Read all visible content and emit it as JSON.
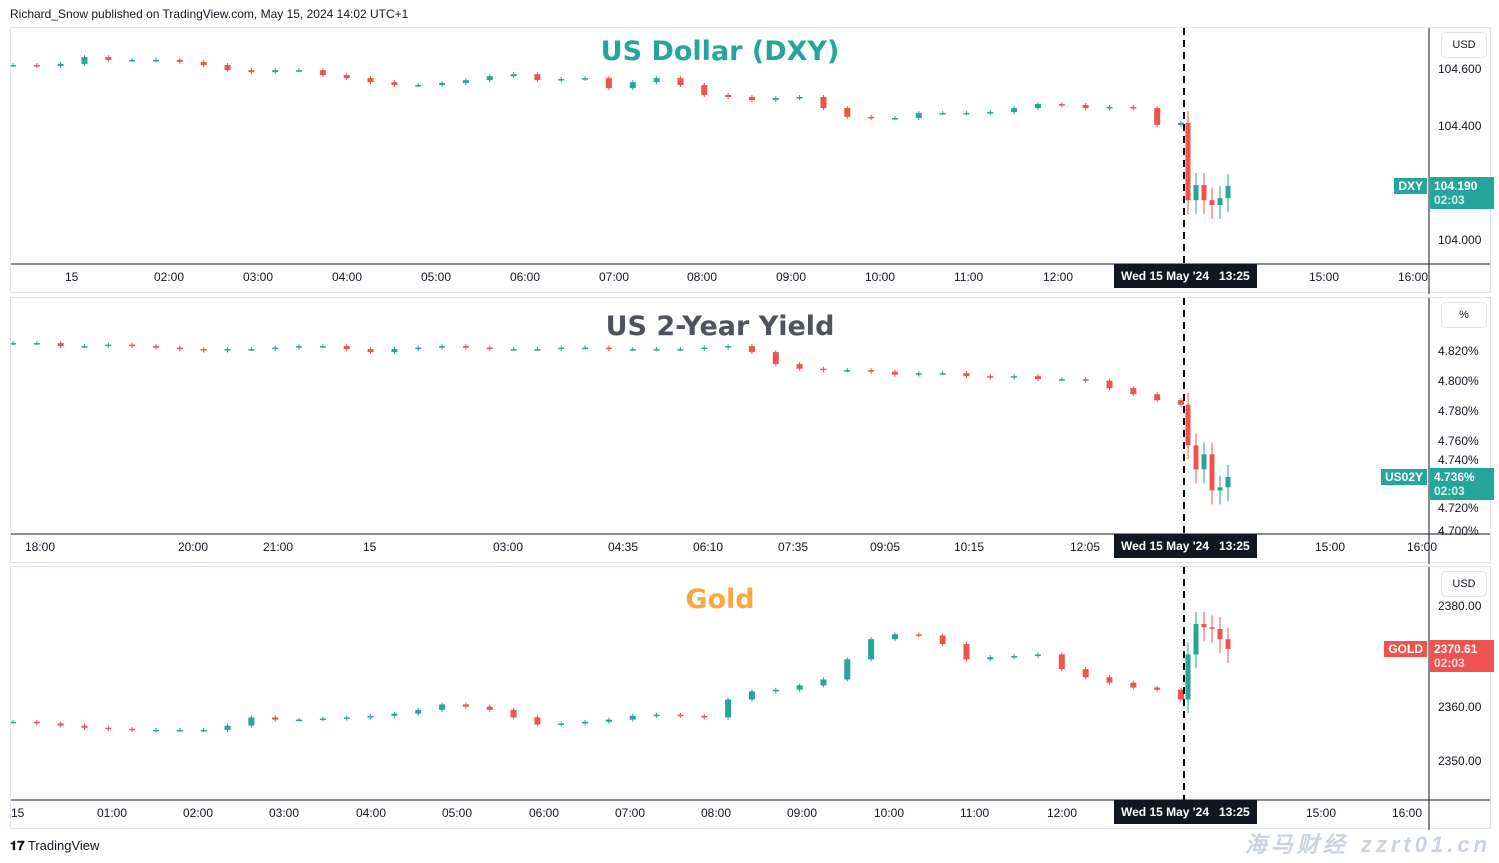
{
  "header": {
    "published": "Richard_Snow published on TradingView.com, May 15, 2024 14:02 UTC+1"
  },
  "footer": {
    "brand": "TradingView"
  },
  "watermark": {
    "line1": "海马财经",
    "line2": "zzrt01.cn"
  },
  "colors": {
    "up": "#26a69a",
    "down": "#ef5350",
    "dxy_title": "#26a69a",
    "yield_title": "#50535e",
    "gold_title": "#f7a93b"
  },
  "chart_data": [
    {
      "type": "candlestick",
      "title": "US Dollar (DXY)",
      "unit": "USD",
      "symbol": "DXY",
      "last_price": "104.190",
      "countdown": "02:03",
      "ylim": [
        103.916,
        104.744
      ],
      "yticks": [
        "104.600",
        "104.400",
        "104.000"
      ],
      "ytick_values": [
        104.6,
        104.4,
        104.0
      ],
      "xticks": [
        "15",
        "02:00",
        "03:00",
        "04:00",
        "05:00",
        "06:00",
        "07:00",
        "08:00",
        "09:00",
        "10:00",
        "11:00",
        "12:00",
        "15:00",
        "16:00"
      ],
      "crosshair_label": "Wed 15 May '24   13:25",
      "closes_before_marker": [
        104.614,
        104.611,
        104.618,
        104.642,
        104.632,
        104.632,
        104.632,
        104.625,
        104.614,
        104.596,
        104.589,
        104.596,
        104.596,
        104.579,
        104.568,
        104.554,
        104.544,
        104.544,
        104.551,
        104.561,
        104.575,
        104.582,
        104.561,
        104.565,
        104.568,
        104.533,
        104.554,
        104.568,
        104.544,
        104.509,
        104.502,
        104.491,
        104.498,
        104.502,
        104.463,
        104.432,
        104.428,
        104.428,
        104.446,
        104.446,
        104.446,
        104.449,
        104.463,
        104.477,
        104.474,
        104.463,
        104.467,
        104.463,
        104.404,
        104.411
      ],
      "closes_after_marker": [
        104.14,
        104.193,
        104.14,
        104.123,
        104.147,
        104.19
      ]
    },
    {
      "type": "candlestick",
      "title": "US 2-Year Yield",
      "unit": "%",
      "symbol": "US02Y",
      "last_price": "4.736%",
      "countdown": "02:03",
      "ylim": [
        4.698,
        4.855
      ],
      "yticks": [
        "4.820%",
        "4.800%",
        "4.780%",
        "4.760%",
        "4.740%",
        "4.720%",
        "4.700%"
      ],
      "ytick_values": [
        4.82,
        4.8,
        4.78,
        4.76,
        4.74,
        4.72,
        4.7
      ],
      "xticks": [
        "18:00",
        "20:00",
        "21:00",
        "15",
        "03:00",
        "04:35",
        "06:10",
        "07:35",
        "09:05",
        "10:15",
        "12:05",
        "15:00",
        "16:00"
      ],
      "crosshair_label": "Wed 15 May '24   13:25",
      "closes_before_marker": [
        4.825,
        4.825,
        4.823,
        4.823,
        4.824,
        4.823,
        4.822,
        4.821,
        4.82,
        4.821,
        4.821,
        4.822,
        4.823,
        4.823,
        4.821,
        4.819,
        4.821,
        4.822,
        4.823,
        4.822,
        4.821,
        4.821,
        4.821,
        4.822,
        4.822,
        4.821,
        4.821,
        4.821,
        4.821,
        4.822,
        4.823,
        4.819,
        4.811,
        4.808,
        4.807,
        4.807,
        4.806,
        4.804,
        4.805,
        4.805,
        4.803,
        4.802,
        4.803,
        4.801,
        4.801,
        4.8,
        4.795,
        4.791,
        4.787,
        4.784
      ],
      "closes_after_marker": [
        4.757,
        4.741,
        4.751,
        4.727,
        4.729,
        4.736
      ]
    },
    {
      "type": "candlestick",
      "title": "Gold",
      "unit": "USD",
      "symbol": "GOLD",
      "last_price": "2370.61",
      "countdown": "02:03",
      "ylim": [
        2342.8,
        2385.7
      ],
      "yticks": [
        "2380.00",
        "2360.00",
        "2350.00"
      ],
      "ytick_values": [
        2380,
        2360,
        2350
      ],
      "xticks": [
        "15",
        "01:00",
        "02:00",
        "03:00",
        "04:00",
        "05:00",
        "06:00",
        "07:00",
        "08:00",
        "09:00",
        "10:00",
        "11:00",
        "12:00",
        "15:00",
        "16:00"
      ],
      "crosshair_label": "Wed 15 May '24   13:25",
      "closes_before_marker": [
        2357.2,
        2356.9,
        2356.5,
        2356.1,
        2355.9,
        2355.7,
        2355.7,
        2355.7,
        2355.7,
        2356.5,
        2358.0,
        2357.6,
        2357.6,
        2357.8,
        2358.0,
        2358.3,
        2358.7,
        2359.4,
        2360.4,
        2360.0,
        2359.4,
        2358.0,
        2356.7,
        2356.9,
        2357.2,
        2357.6,
        2358.3,
        2358.5,
        2358.3,
        2358.0,
        2361.3,
        2362.8,
        2363.1,
        2363.9,
        2365.0,
        2368.7,
        2372.4,
        2373.3,
        2373.1,
        2371.5,
        2368.7,
        2369.1,
        2369.3,
        2369.6,
        2366.9,
        2365.4,
        2364.4,
        2363.5,
        2363.1,
        2361.3
      ],
      "closes_after_marker": [
        2369.6,
        2375.2,
        2374.6,
        2374.3,
        2372.4,
        2370.61
      ]
    }
  ]
}
